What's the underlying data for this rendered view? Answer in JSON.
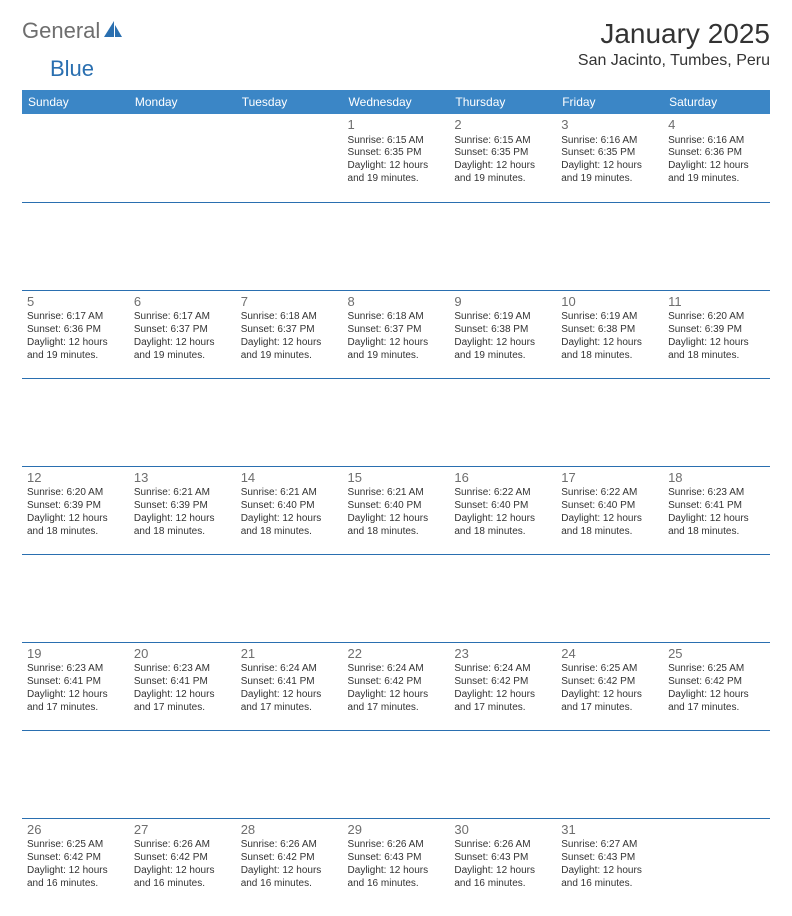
{
  "brand": {
    "name1": "General",
    "name2": "Blue"
  },
  "title": "January 2025",
  "location": "San Jacinto, Tumbes, Peru",
  "colors": {
    "header_bg": "#3b86c6",
    "header_text": "#ffffff",
    "rule": "#2a6fb0",
    "daynum": "#6e6e6e",
    "body_text": "#333333",
    "logo_gray": "#6e6e6e",
    "logo_blue": "#2a6fb0",
    "page_bg": "#ffffff"
  },
  "daynames": [
    "Sunday",
    "Monday",
    "Tuesday",
    "Wednesday",
    "Thursday",
    "Friday",
    "Saturday"
  ],
  "weeks": [
    [
      null,
      null,
      null,
      {
        "d": "1",
        "sr": "6:15 AM",
        "ss": "6:35 PM",
        "dl": "12 hours and 19 minutes."
      },
      {
        "d": "2",
        "sr": "6:15 AM",
        "ss": "6:35 PM",
        "dl": "12 hours and 19 minutes."
      },
      {
        "d": "3",
        "sr": "6:16 AM",
        "ss": "6:35 PM",
        "dl": "12 hours and 19 minutes."
      },
      {
        "d": "4",
        "sr": "6:16 AM",
        "ss": "6:36 PM",
        "dl": "12 hours and 19 minutes."
      }
    ],
    [
      {
        "d": "5",
        "sr": "6:17 AM",
        "ss": "6:36 PM",
        "dl": "12 hours and 19 minutes."
      },
      {
        "d": "6",
        "sr": "6:17 AM",
        "ss": "6:37 PM",
        "dl": "12 hours and 19 minutes."
      },
      {
        "d": "7",
        "sr": "6:18 AM",
        "ss": "6:37 PM",
        "dl": "12 hours and 19 minutes."
      },
      {
        "d": "8",
        "sr": "6:18 AM",
        "ss": "6:37 PM",
        "dl": "12 hours and 19 minutes."
      },
      {
        "d": "9",
        "sr": "6:19 AM",
        "ss": "6:38 PM",
        "dl": "12 hours and 19 minutes."
      },
      {
        "d": "10",
        "sr": "6:19 AM",
        "ss": "6:38 PM",
        "dl": "12 hours and 18 minutes."
      },
      {
        "d": "11",
        "sr": "6:20 AM",
        "ss": "6:39 PM",
        "dl": "12 hours and 18 minutes."
      }
    ],
    [
      {
        "d": "12",
        "sr": "6:20 AM",
        "ss": "6:39 PM",
        "dl": "12 hours and 18 minutes."
      },
      {
        "d": "13",
        "sr": "6:21 AM",
        "ss": "6:39 PM",
        "dl": "12 hours and 18 minutes."
      },
      {
        "d": "14",
        "sr": "6:21 AM",
        "ss": "6:40 PM",
        "dl": "12 hours and 18 minutes."
      },
      {
        "d": "15",
        "sr": "6:21 AM",
        "ss": "6:40 PM",
        "dl": "12 hours and 18 minutes."
      },
      {
        "d": "16",
        "sr": "6:22 AM",
        "ss": "6:40 PM",
        "dl": "12 hours and 18 minutes."
      },
      {
        "d": "17",
        "sr": "6:22 AM",
        "ss": "6:40 PM",
        "dl": "12 hours and 18 minutes."
      },
      {
        "d": "18",
        "sr": "6:23 AM",
        "ss": "6:41 PM",
        "dl": "12 hours and 18 minutes."
      }
    ],
    [
      {
        "d": "19",
        "sr": "6:23 AM",
        "ss": "6:41 PM",
        "dl": "12 hours and 17 minutes."
      },
      {
        "d": "20",
        "sr": "6:23 AM",
        "ss": "6:41 PM",
        "dl": "12 hours and 17 minutes."
      },
      {
        "d": "21",
        "sr": "6:24 AM",
        "ss": "6:41 PM",
        "dl": "12 hours and 17 minutes."
      },
      {
        "d": "22",
        "sr": "6:24 AM",
        "ss": "6:42 PM",
        "dl": "12 hours and 17 minutes."
      },
      {
        "d": "23",
        "sr": "6:24 AM",
        "ss": "6:42 PM",
        "dl": "12 hours and 17 minutes."
      },
      {
        "d": "24",
        "sr": "6:25 AM",
        "ss": "6:42 PM",
        "dl": "12 hours and 17 minutes."
      },
      {
        "d": "25",
        "sr": "6:25 AM",
        "ss": "6:42 PM",
        "dl": "12 hours and 17 minutes."
      }
    ],
    [
      {
        "d": "26",
        "sr": "6:25 AM",
        "ss": "6:42 PM",
        "dl": "12 hours and 16 minutes."
      },
      {
        "d": "27",
        "sr": "6:26 AM",
        "ss": "6:42 PM",
        "dl": "12 hours and 16 minutes."
      },
      {
        "d": "28",
        "sr": "6:26 AM",
        "ss": "6:42 PM",
        "dl": "12 hours and 16 minutes."
      },
      {
        "d": "29",
        "sr": "6:26 AM",
        "ss": "6:43 PM",
        "dl": "12 hours and 16 minutes."
      },
      {
        "d": "30",
        "sr": "6:26 AM",
        "ss": "6:43 PM",
        "dl": "12 hours and 16 minutes."
      },
      {
        "d": "31",
        "sr": "6:27 AM",
        "ss": "6:43 PM",
        "dl": "12 hours and 16 minutes."
      },
      null
    ]
  ],
  "labels": {
    "sunrise": "Sunrise:",
    "sunset": "Sunset:",
    "daylight": "Daylight:"
  }
}
